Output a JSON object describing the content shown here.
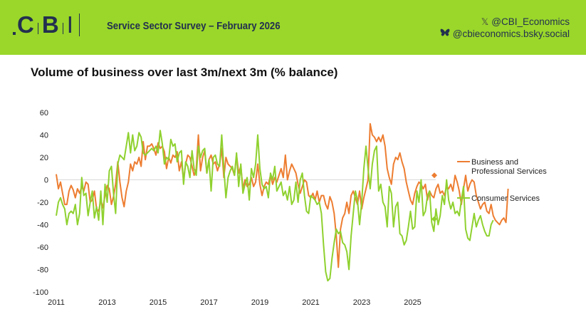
{
  "header": {
    "logo_letters": [
      "C",
      "B",
      "I"
    ],
    "survey_title": "Service Sector Survey – February 2026",
    "social": [
      {
        "icon": "x-icon",
        "glyph": "𝕏",
        "handle": "@CBI_Economics"
      },
      {
        "icon": "bluesky-butterfly-icon",
        "glyph": "",
        "handle": "@cbieconomics.bsky.social"
      }
    ]
  },
  "colors": {
    "banner": "#9ad72a",
    "brand_navy": "#23304f",
    "business_series": "#ed7d31",
    "consumer_series": "#8fd12f",
    "zero_line": "#d9d9d9"
  },
  "chart_data": {
    "type": "line",
    "title": "Volume of business over last 3m/next 3m (% balance)",
    "xlabel": "",
    "ylabel": "",
    "x_start": "2011-01",
    "x_step": "month",
    "xlim": [
      2011,
      2026.1
    ],
    "ylim": [
      -100,
      60
    ],
    "yticks": [
      60,
      40,
      20,
      0,
      -20,
      -40,
      -60,
      -80,
      -100
    ],
    "xticks": [
      "2011",
      "2013",
      "2015",
      "2017",
      "2019",
      "2021",
      "2023",
      "2025"
    ],
    "grid": false,
    "zero_line": true,
    "legend_position": "right",
    "series": [
      {
        "name": "Business and Professional Services",
        "color": "#ed7d31",
        "values": [
          5,
          -8,
          -2,
          -12,
          -22,
          -22,
          -10,
          -5,
          -9,
          -16,
          -8,
          -12,
          -6,
          -10,
          -2,
          -4,
          -20,
          -18,
          -10,
          -26,
          -28,
          -18,
          -25,
          -14,
          -5,
          -8,
          -22,
          -15,
          -4,
          16,
          -2,
          -16,
          -24,
          -10,
          -2,
          14,
          8,
          16,
          14,
          20,
          12,
          34,
          18,
          30,
          30,
          32,
          28,
          22,
          33,
          28,
          30,
          25,
          10,
          20,
          15,
          22,
          20,
          25,
          8,
          16,
          0,
          14,
          22,
          20,
          12,
          4,
          10,
          40,
          8,
          20,
          26,
          6,
          18,
          22,
          14,
          16,
          8,
          14,
          28,
          2,
          20,
          14,
          12,
          10,
          4,
          22,
          6,
          12,
          -8,
          0,
          -6,
          -4,
          2,
          -6,
          -2,
          14,
          -4,
          -14,
          -6,
          -2,
          -4,
          4,
          -4,
          2,
          -2,
          4,
          10,
          2,
          22,
          0,
          8,
          14,
          10,
          6,
          -4,
          -12,
          -6,
          0,
          -2,
          -14,
          -16,
          -12,
          -18,
          -10,
          -20,
          -14,
          -14,
          -22,
          -26,
          -15,
          -20,
          -30,
          -50,
          -78,
          -44,
          -34,
          -30,
          -20,
          -30,
          -14,
          -10,
          -16,
          -22,
          -10,
          -26,
          -16,
          -8,
          0,
          50,
          40,
          38,
          34,
          38,
          34,
          40,
          30,
          10,
          2,
          -4,
          14,
          20,
          18,
          24,
          16,
          10,
          -2,
          -10,
          -18,
          -22,
          -12,
          -6,
          -2,
          -4,
          -8,
          -4,
          -18,
          -10,
          -14,
          -16,
          -8,
          -4,
          -12,
          -10,
          -14,
          -6,
          -8,
          -4,
          -10,
          4,
          -2,
          -10,
          -22,
          -8,
          4,
          -10,
          -4,
          0,
          -2,
          -14,
          -20,
          -26,
          -22,
          -20,
          -28,
          -30,
          -22,
          -32,
          -36,
          -38,
          -40,
          -36,
          -34,
          -38,
          -8
        ],
        "expected": 4
      },
      {
        "name": "Consumer Services",
        "color": "#8fd12f",
        "values": [
          -32,
          -20,
          -16,
          -22,
          -26,
          -40,
          -30,
          -28,
          -30,
          -22,
          -40,
          -30,
          2,
          -14,
          -12,
          -32,
          -20,
          -10,
          -34,
          -24,
          -36,
          -10,
          -40,
          -4,
          -20,
          8,
          12,
          -12,
          -30,
          14,
          22,
          20,
          18,
          30,
          42,
          24,
          40,
          26,
          30,
          42,
          38,
          24,
          22,
          24,
          26,
          28,
          26,
          30,
          24,
          44,
          32,
          14,
          20,
          18,
          36,
          30,
          32,
          16,
          24,
          26,
          -4,
          16,
          12,
          2,
          26,
          10,
          4,
          30,
          20,
          26,
          28,
          6,
          18,
          -10,
          20,
          22,
          14,
          12,
          40,
          10,
          -16,
          2,
          8,
          12,
          4,
          24,
          -6,
          14,
          -12,
          -4,
          2,
          -18,
          10,
          2,
          14,
          40,
          10,
          -4,
          -8,
          -6,
          -16,
          6,
          0,
          12,
          -10,
          -6,
          -2,
          -14,
          -10,
          -18,
          -6,
          -22,
          -18,
          -2,
          -20,
          0,
          6,
          -14,
          -28,
          -30,
          -14,
          -16,
          -18,
          -22,
          -20,
          -30,
          -58,
          -82,
          -90,
          -88,
          -70,
          -56,
          -44,
          -48,
          -46,
          -56,
          -58,
          -64,
          -80,
          -50,
          -30,
          -10,
          -18,
          -40,
          -20,
          10,
          30,
          10,
          -8,
          14,
          26,
          30,
          -10,
          -4,
          -20,
          -24,
          -42,
          -6,
          -12,
          -42,
          -24,
          -20,
          -48,
          -50,
          -58,
          -54,
          -42,
          -28,
          -44,
          -42,
          -10,
          -20,
          0,
          -32,
          -28,
          -14,
          -10,
          -38,
          -46,
          -26,
          -40,
          -32,
          -14,
          -22,
          0,
          -18,
          -26,
          -20,
          -30,
          -28,
          -32,
          -18,
          -6,
          -44,
          -52,
          -54,
          -42,
          -30,
          -42,
          -36,
          -32,
          -40,
          -46,
          -50,
          -50,
          -40,
          -36
        ],
        "expected": -35
      }
    ]
  }
}
